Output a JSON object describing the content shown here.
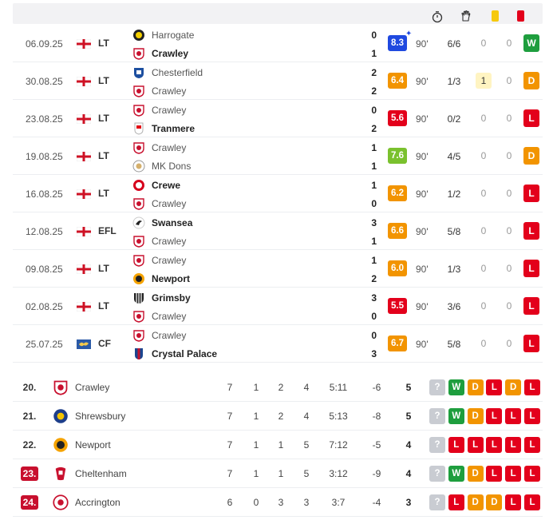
{
  "header": {
    "clock_icon": "stopwatch-icon",
    "glove_icon": "goalkeeper-glove-icon"
  },
  "colors": {
    "win": "#1e9e3e",
    "draw": "#f29400",
    "loss": "#e3001b",
    "rating_blue": "#1f49e0",
    "rating_green": "#7ac12e",
    "rating_orange": "#f29400",
    "rating_red": "#e3001b"
  },
  "matches": [
    {
      "date": "06.09.25",
      "comp": "LT",
      "flag": "england",
      "home": "Harrogate",
      "away": "Crawley",
      "home_score": "0",
      "away_score": "1",
      "winner": "away",
      "rating": "8.3",
      "rating_color": "#1f49e0",
      "star": "✦",
      "mins": "90'",
      "saves": "6/6",
      "yellow": "0",
      "red": "0",
      "result": "W"
    },
    {
      "date": "30.08.25",
      "comp": "LT",
      "flag": "england",
      "home": "Chesterfield",
      "away": "Crawley",
      "home_score": "2",
      "away_score": "2",
      "winner": "none",
      "rating": "6.4",
      "rating_color": "#f29400",
      "mins": "90'",
      "saves": "1/3",
      "yellow": "1",
      "red": "0",
      "result": "D"
    },
    {
      "date": "23.08.25",
      "comp": "LT",
      "flag": "england",
      "home": "Crawley",
      "away": "Tranmere",
      "home_score": "0",
      "away_score": "2",
      "winner": "away",
      "rating": "5.6",
      "rating_color": "#e3001b",
      "mins": "90'",
      "saves": "0/2",
      "yellow": "0",
      "red": "0",
      "result": "L"
    },
    {
      "date": "19.08.25",
      "comp": "LT",
      "flag": "england",
      "home": "Crawley",
      "away": "MK Dons",
      "home_score": "1",
      "away_score": "1",
      "winner": "none",
      "rating": "7.6",
      "rating_color": "#7ac12e",
      "mins": "90'",
      "saves": "4/5",
      "yellow": "0",
      "red": "0",
      "result": "D"
    },
    {
      "date": "16.08.25",
      "comp": "LT",
      "flag": "england",
      "home": "Crewe",
      "away": "Crawley",
      "home_score": "1",
      "away_score": "0",
      "winner": "home",
      "rating": "6.2",
      "rating_color": "#f29400",
      "mins": "90'",
      "saves": "1/2",
      "yellow": "0",
      "red": "0",
      "result": "L"
    },
    {
      "date": "12.08.25",
      "comp": "EFL",
      "flag": "england",
      "home": "Swansea",
      "away": "Crawley",
      "home_score": "3",
      "away_score": "1",
      "winner": "home",
      "rating": "6.6",
      "rating_color": "#f29400",
      "mins": "90'",
      "saves": "5/8",
      "yellow": "0",
      "red": "0",
      "result": "L"
    },
    {
      "date": "09.08.25",
      "comp": "LT",
      "flag": "england",
      "home": "Crawley",
      "away": "Newport",
      "home_score": "1",
      "away_score": "2",
      "winner": "away",
      "rating": "6.0",
      "rating_color": "#f29400",
      "mins": "90'",
      "saves": "1/3",
      "yellow": "0",
      "red": "0",
      "result": "L"
    },
    {
      "date": "02.08.25",
      "comp": "LT",
      "flag": "england",
      "home": "Grimsby",
      "away": "Crawley",
      "home_score": "3",
      "away_score": "0",
      "winner": "home",
      "rating": "5.5",
      "rating_color": "#e3001b",
      "mins": "90'",
      "saves": "3/6",
      "yellow": "0",
      "red": "0",
      "result": "L"
    },
    {
      "date": "25.07.25",
      "comp": "CF",
      "flag": "world",
      "home": "Crawley",
      "away": "Crystal Palace",
      "home_score": "0",
      "away_score": "3",
      "winner": "away",
      "rating": "6.7",
      "rating_color": "#f29400",
      "mins": "90'",
      "saves": "5/8",
      "yellow": "0",
      "red": "0",
      "result": "L"
    }
  ],
  "standings": [
    {
      "pos": "20.",
      "relegation": false,
      "team": "Crawley",
      "played": "7",
      "w": "1",
      "d": "2",
      "l": "4",
      "goals": "5:11",
      "gd": "-6",
      "pts": "5",
      "form": [
        "?",
        "W",
        "D",
        "L",
        "D",
        "L"
      ]
    },
    {
      "pos": "21.",
      "relegation": false,
      "team": "Shrewsbury",
      "played": "7",
      "w": "1",
      "d": "2",
      "l": "4",
      "goals": "5:13",
      "gd": "-8",
      "pts": "5",
      "form": [
        "?",
        "W",
        "D",
        "L",
        "L",
        "L"
      ]
    },
    {
      "pos": "22.",
      "relegation": false,
      "team": "Newport",
      "played": "7",
      "w": "1",
      "d": "1",
      "l": "5",
      "goals": "7:12",
      "gd": "-5",
      "pts": "4",
      "form": [
        "?",
        "L",
        "L",
        "L",
        "L",
        "L"
      ]
    },
    {
      "pos": "23.",
      "relegation": true,
      "team": "Cheltenham",
      "played": "7",
      "w": "1",
      "d": "1",
      "l": "5",
      "goals": "3:12",
      "gd": "-9",
      "pts": "4",
      "form": [
        "?",
        "W",
        "D",
        "L",
        "L",
        "L"
      ]
    },
    {
      "pos": "24.",
      "relegation": true,
      "team": "Accrington",
      "played": "6",
      "w": "0",
      "d": "3",
      "l": "3",
      "goals": "3:7",
      "gd": "-4",
      "pts": "3",
      "form": [
        "?",
        "L",
        "D",
        "D",
        "L",
        "L"
      ]
    }
  ]
}
